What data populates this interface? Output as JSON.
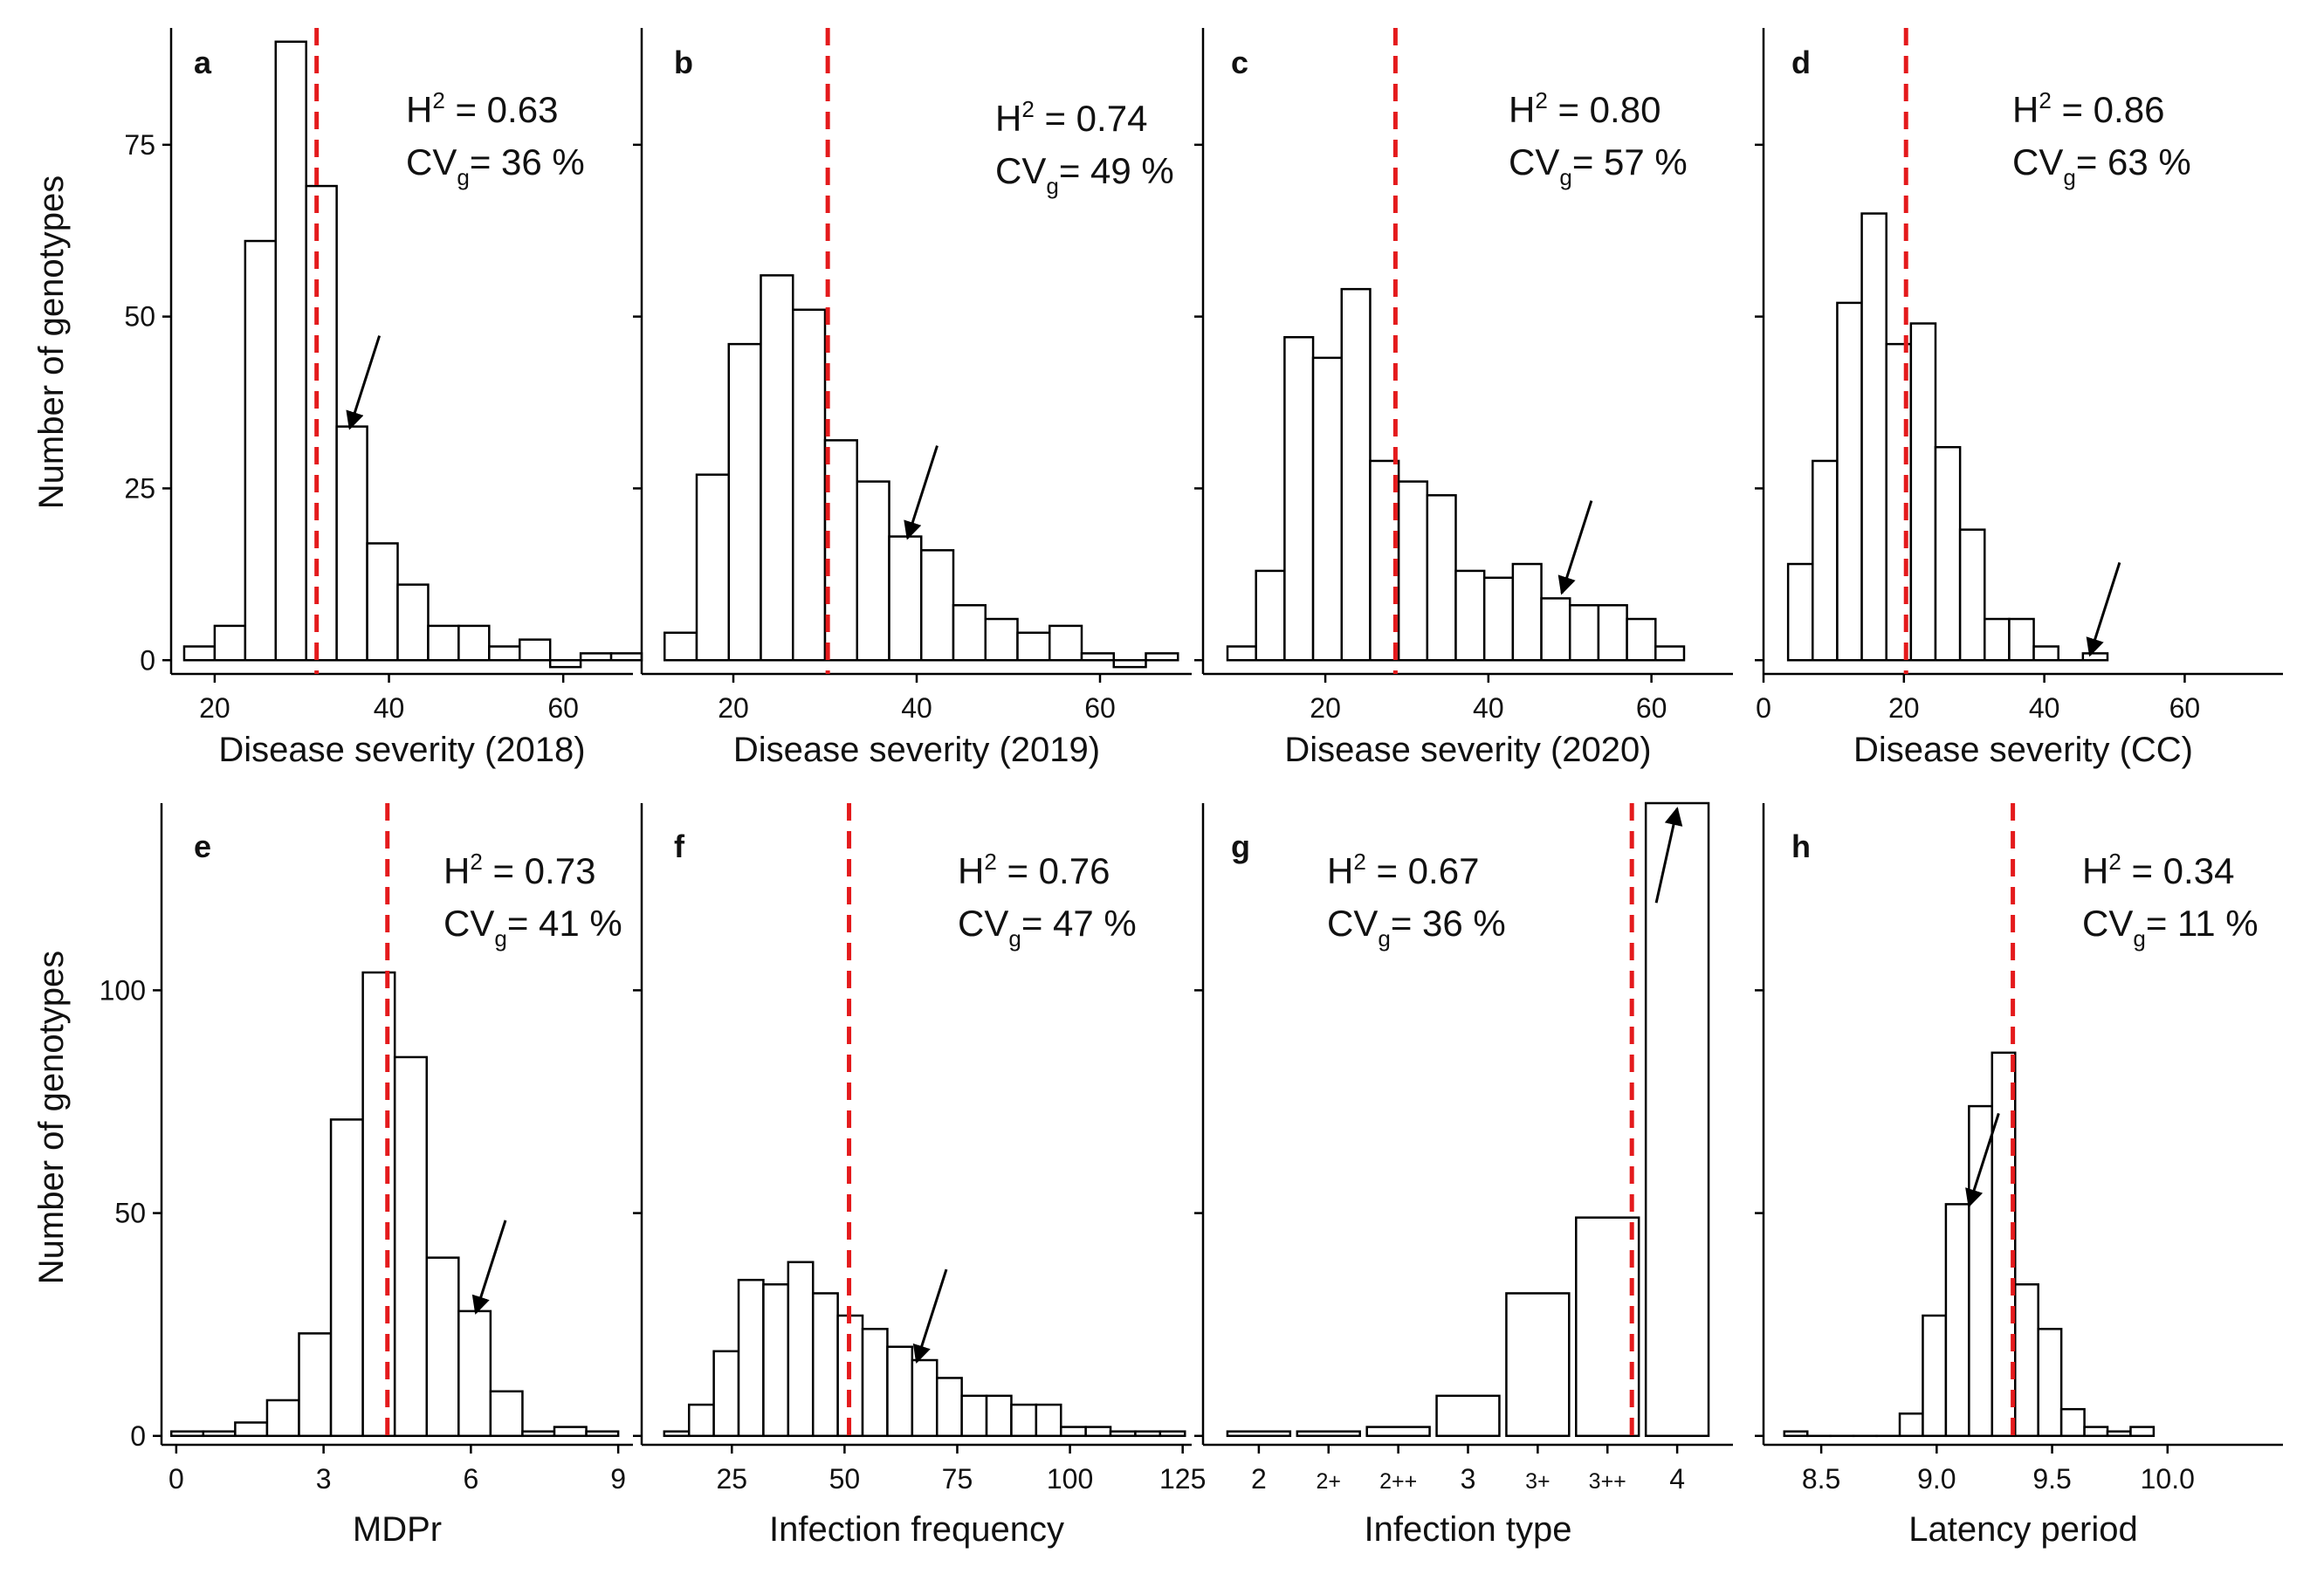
{
  "figure": {
    "y_axis_title": "Number of genotypes",
    "mean_line_color": "#e41a1c",
    "bar_fill": "#ffffff",
    "bar_stroke": "#000000"
  },
  "chart_data": [
    {
      "type": "bar",
      "panel": "a",
      "xlabel": "Disease severity (2018)",
      "ylabel": "Number of genotypes",
      "h2": "H",
      "h2_sup": "2",
      "h2_value": " = 0.63",
      "cvg": "CV",
      "cvg_sub": "g",
      "cvg_value": "= 36 %",
      "xlim": [
        15,
        68
      ],
      "ylim": [
        -2,
        92
      ],
      "xticks": [
        20,
        40,
        60
      ],
      "xtick_labels": [
        "20",
        "40",
        "60"
      ],
      "yticks": [
        0,
        25,
        50,
        75
      ],
      "ytick_labels": [
        "0",
        "25",
        "50",
        "75"
      ],
      "bins": [
        [
          16.5,
          20
        ],
        [
          20,
          23.5
        ],
        [
          23.5,
          27
        ],
        [
          27,
          30.5
        ],
        [
          30.5,
          34
        ],
        [
          34,
          37.5
        ],
        [
          37.5,
          41
        ],
        [
          41,
          44.5
        ],
        [
          44.5,
          48
        ],
        [
          48,
          51.5
        ],
        [
          51.5,
          55
        ],
        [
          55,
          58.5
        ],
        [
          58.5,
          62
        ],
        [
          62,
          65.5
        ],
        [
          65.5,
          69
        ]
      ],
      "values": [
        2,
        5,
        61,
        90,
        69,
        34,
        17,
        11,
        5,
        5,
        2,
        3,
        -1,
        1,
        1
      ],
      "mean": 31.7,
      "arrow_x": 35.5,
      "arrow_y": 34
    },
    {
      "type": "bar",
      "panel": "b",
      "xlabel": "Disease severity (2019)",
      "ylabel": "",
      "h2": "H",
      "h2_sup": "2",
      "h2_value": " = 0.74",
      "cvg": "CV",
      "cvg_sub": "g",
      "cvg_value": "= 49 %",
      "xlim": [
        10,
        70
      ],
      "ylim": [
        -2,
        92
      ],
      "xticks": [
        20,
        40,
        60
      ],
      "xtick_labels": [
        "20",
        "40",
        "60"
      ],
      "yticks": [
        0,
        25,
        50,
        75
      ],
      "ytick_labels": [
        "",
        "",
        "",
        ""
      ],
      "bins": [
        [
          12.5,
          16
        ],
        [
          16,
          19.5
        ],
        [
          19.5,
          23
        ],
        [
          23,
          26.5
        ],
        [
          26.5,
          30
        ],
        [
          30,
          33.5
        ],
        [
          33.5,
          37
        ],
        [
          37,
          40.5
        ],
        [
          40.5,
          44
        ],
        [
          44,
          47.5
        ],
        [
          47.5,
          51
        ],
        [
          51,
          54.5
        ],
        [
          54.5,
          58
        ],
        [
          58,
          61.5
        ],
        [
          61.5,
          65
        ],
        [
          65,
          68.5
        ]
      ],
      "values": [
        4,
        27,
        46,
        56,
        51,
        32,
        26,
        18,
        16,
        8,
        6,
        4,
        5,
        1,
        -1,
        1
      ],
      "mean": 30.3,
      "arrow_x": 39,
      "arrow_y": 18
    },
    {
      "type": "bar",
      "panel": "c",
      "xlabel": "Disease severity (2020)",
      "ylabel": "",
      "h2": "H",
      "h2_sup": "2",
      "h2_value": " = 0.80",
      "cvg": "CV",
      "cvg_sub": "g",
      "cvg_value": "= 57 %",
      "xlim": [
        5,
        70
      ],
      "ylim": [
        -2,
        92
      ],
      "xticks": [
        20,
        40,
        60
      ],
      "xtick_labels": [
        "20",
        "40",
        "60"
      ],
      "yticks": [
        0,
        25,
        50,
        75
      ],
      "ytick_labels": [
        "",
        "",
        "",
        ""
      ],
      "bins": [
        [
          8,
          11.5
        ],
        [
          11.5,
          15
        ],
        [
          15,
          18.5
        ],
        [
          18.5,
          22
        ],
        [
          22,
          25.5
        ],
        [
          25.5,
          29
        ],
        [
          29,
          32.5
        ],
        [
          32.5,
          36
        ],
        [
          36,
          39.5
        ],
        [
          39.5,
          43
        ],
        [
          43,
          46.5
        ],
        [
          46.5,
          50
        ],
        [
          50,
          53.5
        ],
        [
          53.5,
          57
        ],
        [
          57,
          60.5
        ],
        [
          60.5,
          64
        ]
      ],
      "values": [
        2,
        13,
        47,
        44,
        54,
        29,
        26,
        24,
        13,
        12,
        14,
        9,
        8,
        8,
        6,
        2
      ],
      "mean": 28.6,
      "arrow_x": 49,
      "arrow_y": 10
    },
    {
      "type": "bar",
      "panel": "d",
      "xlabel": "Disease severity (CC)",
      "ylabel": "",
      "h2": "H",
      "h2_sup": "2",
      "h2_value": " = 0.86",
      "cvg": "CV",
      "cvg_sub": "g",
      "cvg_value": "= 63 %",
      "xlim": [
        0,
        74
      ],
      "ylim": [
        -2,
        92
      ],
      "xticks": [
        0,
        20,
        40,
        60
      ],
      "xtick_labels": [
        "0",
        "20",
        "40",
        "60"
      ],
      "yticks": [
        0,
        25,
        50,
        75
      ],
      "ytick_labels": [
        "",
        "",
        "",
        ""
      ],
      "bins": [
        [
          3.5,
          7
        ],
        [
          7,
          10.5
        ],
        [
          10.5,
          14
        ],
        [
          14,
          17.5
        ],
        [
          17.5,
          21
        ],
        [
          21,
          24.5
        ],
        [
          24.5,
          28
        ],
        [
          28,
          31.5
        ],
        [
          31.5,
          35
        ],
        [
          35,
          38.5
        ],
        [
          38.5,
          42
        ],
        [
          42,
          45.5
        ],
        [
          45.5,
          49
        ]
      ],
      "values": [
        14,
        29,
        52,
        65,
        46,
        49,
        31,
        19,
        6,
        6,
        2,
        0,
        1
      ],
      "mean": 20.3,
      "arrow_x": 46.5,
      "arrow_y": 1
    },
    {
      "type": "bar",
      "panel": "e",
      "xlabel": "MDPr",
      "ylabel": "Number of genotypes",
      "h2": "H",
      "h2_sup": "2",
      "h2_value": " = 0.73",
      "cvg": "CV",
      "cvg_sub": "g",
      "cvg_value": "= 41 %",
      "xlim": [
        -0.3,
        9.3
      ],
      "ylim": [
        -2,
        142
      ],
      "xticks": [
        0,
        3,
        6,
        9
      ],
      "xtick_labels": [
        "0",
        "3",
        "6",
        "9"
      ],
      "yticks": [
        0,
        50,
        100
      ],
      "ytick_labels": [
        "0",
        "50",
        "100"
      ],
      "bins": [
        [
          -0.1,
          0.55
        ],
        [
          0.55,
          1.2
        ],
        [
          1.2,
          1.85
        ],
        [
          1.85,
          2.5
        ],
        [
          2.5,
          3.15
        ],
        [
          3.15,
          3.8
        ],
        [
          3.8,
          4.45
        ],
        [
          4.45,
          5.1
        ],
        [
          5.1,
          5.75
        ],
        [
          5.75,
          6.4
        ],
        [
          6.4,
          7.05
        ],
        [
          7.05,
          7.7
        ],
        [
          7.7,
          8.35
        ],
        [
          8.35,
          9
        ]
      ],
      "values": [
        1,
        1,
        3,
        8,
        23,
        71,
        104,
        85,
        40,
        28,
        10,
        1,
        2,
        1
      ],
      "mean": 4.3,
      "arrow_x": 6.1,
      "arrow_y": 28
    },
    {
      "type": "bar",
      "panel": "f",
      "xlabel": "Infection frequency",
      "ylabel": "",
      "h2": "H",
      "h2_sup": "2",
      "h2_value": " = 0.76",
      "cvg": "CV",
      "cvg_sub": "g",
      "cvg_value": "= 47 %",
      "xlim": [
        5,
        127
      ],
      "ylim": [
        -2,
        142
      ],
      "xticks": [
        25,
        50,
        75,
        100,
        125
      ],
      "xtick_labels": [
        "25",
        "50",
        "75",
        "100",
        "125"
      ],
      "yticks": [
        0,
        50,
        100
      ],
      "ytick_labels": [
        "",
        "",
        "",
        ""
      ],
      "bins": [
        [
          10,
          15.5
        ],
        [
          15.5,
          21
        ],
        [
          21,
          26.5
        ],
        [
          26.5,
          32
        ],
        [
          32,
          37.5
        ],
        [
          37.5,
          43
        ],
        [
          43,
          48.5
        ],
        [
          48.5,
          54
        ],
        [
          54,
          59.5
        ],
        [
          59.5,
          65
        ],
        [
          65,
          70.5
        ],
        [
          70.5,
          76
        ],
        [
          76,
          81.5
        ],
        [
          81.5,
          87
        ],
        [
          87,
          92.5
        ],
        [
          92.5,
          98
        ],
        [
          98,
          103.5
        ],
        [
          103.5,
          109
        ],
        [
          109,
          114.5
        ],
        [
          114.5,
          120
        ],
        [
          120,
          125.5
        ]
      ],
      "values": [
        1,
        7,
        19,
        35,
        34,
        39,
        32,
        27,
        24,
        20,
        17,
        13,
        9,
        9,
        7,
        7,
        2,
        2,
        1,
        1,
        1
      ],
      "mean": 51,
      "arrow_x": 66,
      "arrow_y": 17
    },
    {
      "type": "bar",
      "panel": "g",
      "xlabel": "Infection type",
      "ylabel": "",
      "h2": "H",
      "h2_sup": "2",
      "h2_value": " = 0.67",
      "cvg": "CV",
      "cvg_sub": "g",
      "cvg_value": "= 36 %",
      "xlim": [
        0.2,
        7.8
      ],
      "ylim": [
        -2,
        142
      ],
      "xticks": [
        1,
        2,
        3,
        4,
        5,
        6,
        7
      ],
      "xtick_labels": [
        "2",
        "2+",
        "2++",
        "3",
        "3+",
        "3++",
        "4"
      ],
      "yticks": [
        0,
        50,
        100
      ],
      "ytick_labels": [
        "",
        "",
        "",
        ""
      ],
      "categories": [
        "2",
        "2+",
        "2++",
        "3",
        "3+",
        "3++",
        "4"
      ],
      "bins": [
        [
          0.55,
          1.45
        ],
        [
          1.55,
          2.45
        ],
        [
          2.55,
          3.45
        ],
        [
          3.55,
          4.45
        ],
        [
          4.55,
          5.45
        ],
        [
          5.55,
          6.45
        ],
        [
          6.55,
          7.45
        ]
      ],
      "values": [
        1,
        1,
        2,
        9,
        32,
        49,
        142
      ],
      "mean": 6.35,
      "arrow_x": 7,
      "arrow_y": 140
    },
    {
      "type": "bar",
      "panel": "h",
      "xlabel": "Latency period",
      "ylabel": "",
      "h2": "H",
      "h2_sup": "2",
      "h2_value": " = 0.34",
      "cvg": "CV",
      "cvg_sub": "g",
      "cvg_value": "= 11 %",
      "xlim": [
        8.25,
        10.5
      ],
      "ylim": [
        -2,
        142
      ],
      "xticks": [
        8.5,
        9.0,
        9.5,
        10.0
      ],
      "xtick_labels": [
        "8.5",
        "9.0",
        "9.5",
        "10.0"
      ],
      "yticks": [
        0,
        50,
        100
      ],
      "ytick_labels": [
        "",
        "",
        "",
        ""
      ],
      "bins": [
        [
          8.34,
          8.44
        ],
        [
          8.44,
          8.54
        ],
        [
          8.54,
          8.64
        ],
        [
          8.64,
          8.74
        ],
        [
          8.74,
          8.84
        ],
        [
          8.84,
          8.94
        ],
        [
          8.94,
          9.04
        ],
        [
          9.04,
          9.14
        ],
        [
          9.14,
          9.24
        ],
        [
          9.24,
          9.34
        ],
        [
          9.34,
          9.44
        ],
        [
          9.44,
          9.54
        ],
        [
          9.54,
          9.64
        ],
        [
          9.64,
          9.74
        ],
        [
          9.74,
          9.84
        ],
        [
          9.84,
          9.94
        ]
      ],
      "values": [
        1,
        0,
        0,
        0,
        0,
        5,
        27,
        52,
        74,
        86,
        34,
        24,
        6,
        2,
        1,
        2
      ],
      "mean": 9.33,
      "arrow_x": 9.14,
      "arrow_y": 52
    }
  ]
}
